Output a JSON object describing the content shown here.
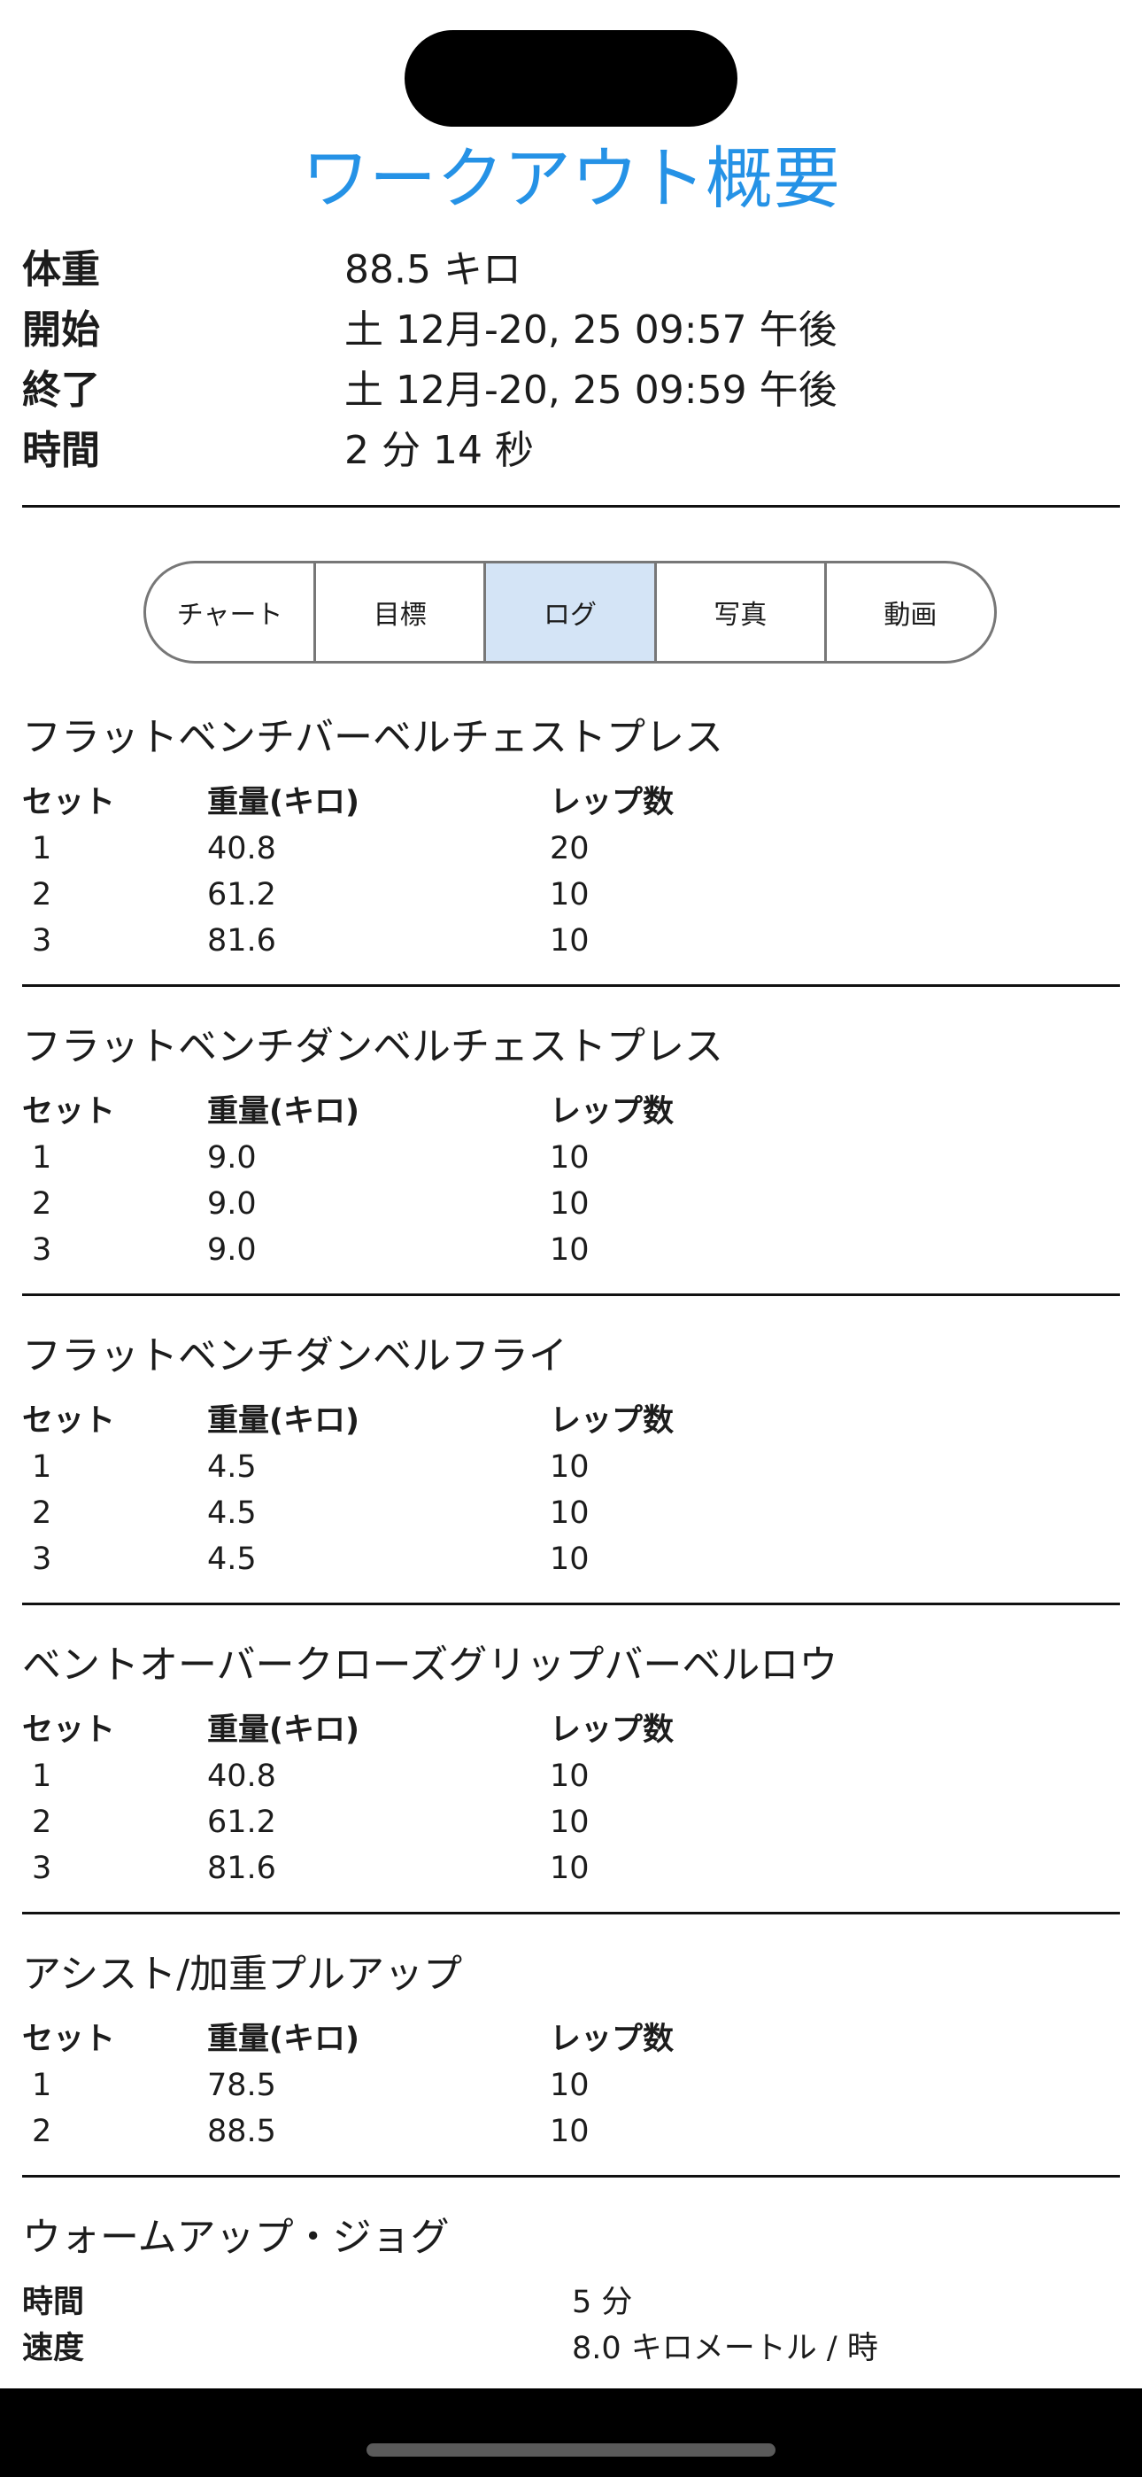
{
  "title": "ワークアウト概要",
  "summary": [
    {
      "label": "体重",
      "value": "88.5 キロ"
    },
    {
      "label": "開始",
      "value": "土 12月-20, 25 09:57 午後"
    },
    {
      "label": "終了",
      "value": "土 12月-20, 25 09:59 午後"
    },
    {
      "label": "時間",
      "value": "2 分 14 秒"
    }
  ],
  "tabs": [
    {
      "label": "チャート",
      "selected": false
    },
    {
      "label": "目標",
      "selected": false
    },
    {
      "label": "ログ",
      "selected": true
    },
    {
      "label": "写真",
      "selected": false
    },
    {
      "label": "動画",
      "selected": false
    }
  ],
  "columns": {
    "set": "セット",
    "weight": "重量(キロ)",
    "reps": "レップ数"
  },
  "exercises": [
    {
      "name": "フラットベンチバーベルチェストプレス",
      "sets": [
        [
          "1",
          "40.8",
          "20"
        ],
        [
          "2",
          "61.2",
          "10"
        ],
        [
          "3",
          "81.6",
          "10"
        ]
      ]
    },
    {
      "name": "フラットベンチダンベルチェストプレス",
      "sets": [
        [
          "1",
          "9.0",
          "10"
        ],
        [
          "2",
          "9.0",
          "10"
        ],
        [
          "3",
          "9.0",
          "10"
        ]
      ]
    },
    {
      "name": "フラットベンチダンベルフライ",
      "sets": [
        [
          "1",
          "4.5",
          "10"
        ],
        [
          "2",
          "4.5",
          "10"
        ],
        [
          "3",
          "4.5",
          "10"
        ]
      ]
    },
    {
      "name": "ベントオーバークローズグリップバーベルロウ",
      "sets": [
        [
          "1",
          "40.8",
          "10"
        ],
        [
          "2",
          "61.2",
          "10"
        ],
        [
          "3",
          "81.6",
          "10"
        ]
      ]
    },
    {
      "name": "アシスト/加重プルアップ",
      "sets": [
        [
          "1",
          "78.5",
          "10"
        ],
        [
          "2",
          "88.5",
          "10"
        ]
      ]
    }
  ],
  "cardio": {
    "name": "ウォームアップ・ジョグ",
    "items": [
      {
        "label": "時間",
        "value": "5 分"
      },
      {
        "label": "速度",
        "value": "8.0 キロメートル / 時"
      }
    ]
  },
  "colors": {
    "title": "#2592e6",
    "selected_tab": "#d4e4f6",
    "tab_border": "#777777"
  }
}
